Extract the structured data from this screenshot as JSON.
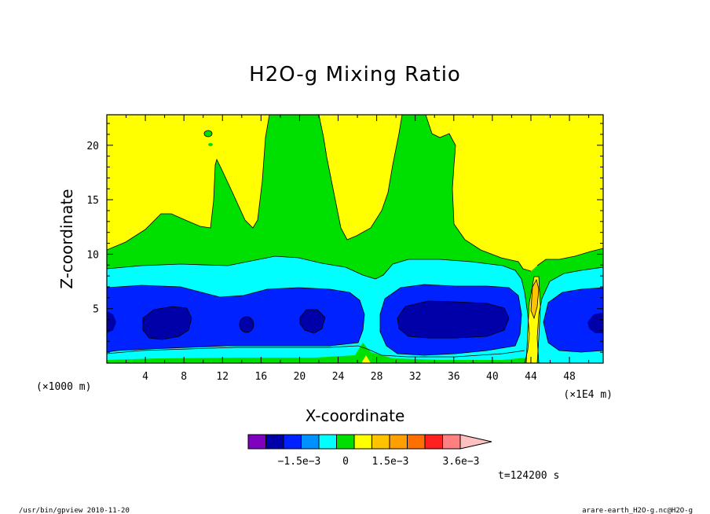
{
  "chart_data": {
    "type": "heatmap",
    "title": "H2O-g Mixing Ratio",
    "xlabel": "X-coordinate",
    "ylabel": "Z-coordinate",
    "x_unit_left": "(×1000 m)",
    "x_unit_right": "(×1E4 m)",
    "x_ticks": [
      "4",
      "8",
      "12",
      "16",
      "20",
      "24",
      "28",
      "32",
      "36",
      "40",
      "44",
      "48"
    ],
    "x_tick_values": [
      4,
      8,
      12,
      16,
      20,
      24,
      28,
      32,
      36,
      40,
      44,
      48
    ],
    "y_ticks": [
      "5",
      "10",
      "15",
      "20"
    ],
    "y_tick_values": [
      5,
      10,
      15,
      20
    ],
    "xlim": [
      0,
      51.5
    ],
    "ylim": [
      0,
      22.8
    ],
    "colorbar": {
      "colors": [
        "#7f00bf",
        "#0000a8",
        "#0022ff",
        "#0090ff",
        "#00ffff",
        "#00e000",
        "#ffff00",
        "#ffc400",
        "#ffa000",
        "#ff7000",
        "#ff2020",
        "#ff8080",
        "#ffc0c0"
      ],
      "labels": [
        "−1.5e−3",
        "0",
        "1.5e−3",
        "3.6e−3"
      ]
    },
    "regions": {
      "yellow": "#ffff00",
      "green": "#00e000",
      "cyan": "#00ffff",
      "blue": "#0022ff",
      "navy": "#0000a8",
      "orange": "#ffc400"
    }
  },
  "time_label": "t=124200 s",
  "footer_left": "/usr/bin/gpview  2010-11-20",
  "footer_right": "arare-earth_H2O-g.nc@H2O-g"
}
